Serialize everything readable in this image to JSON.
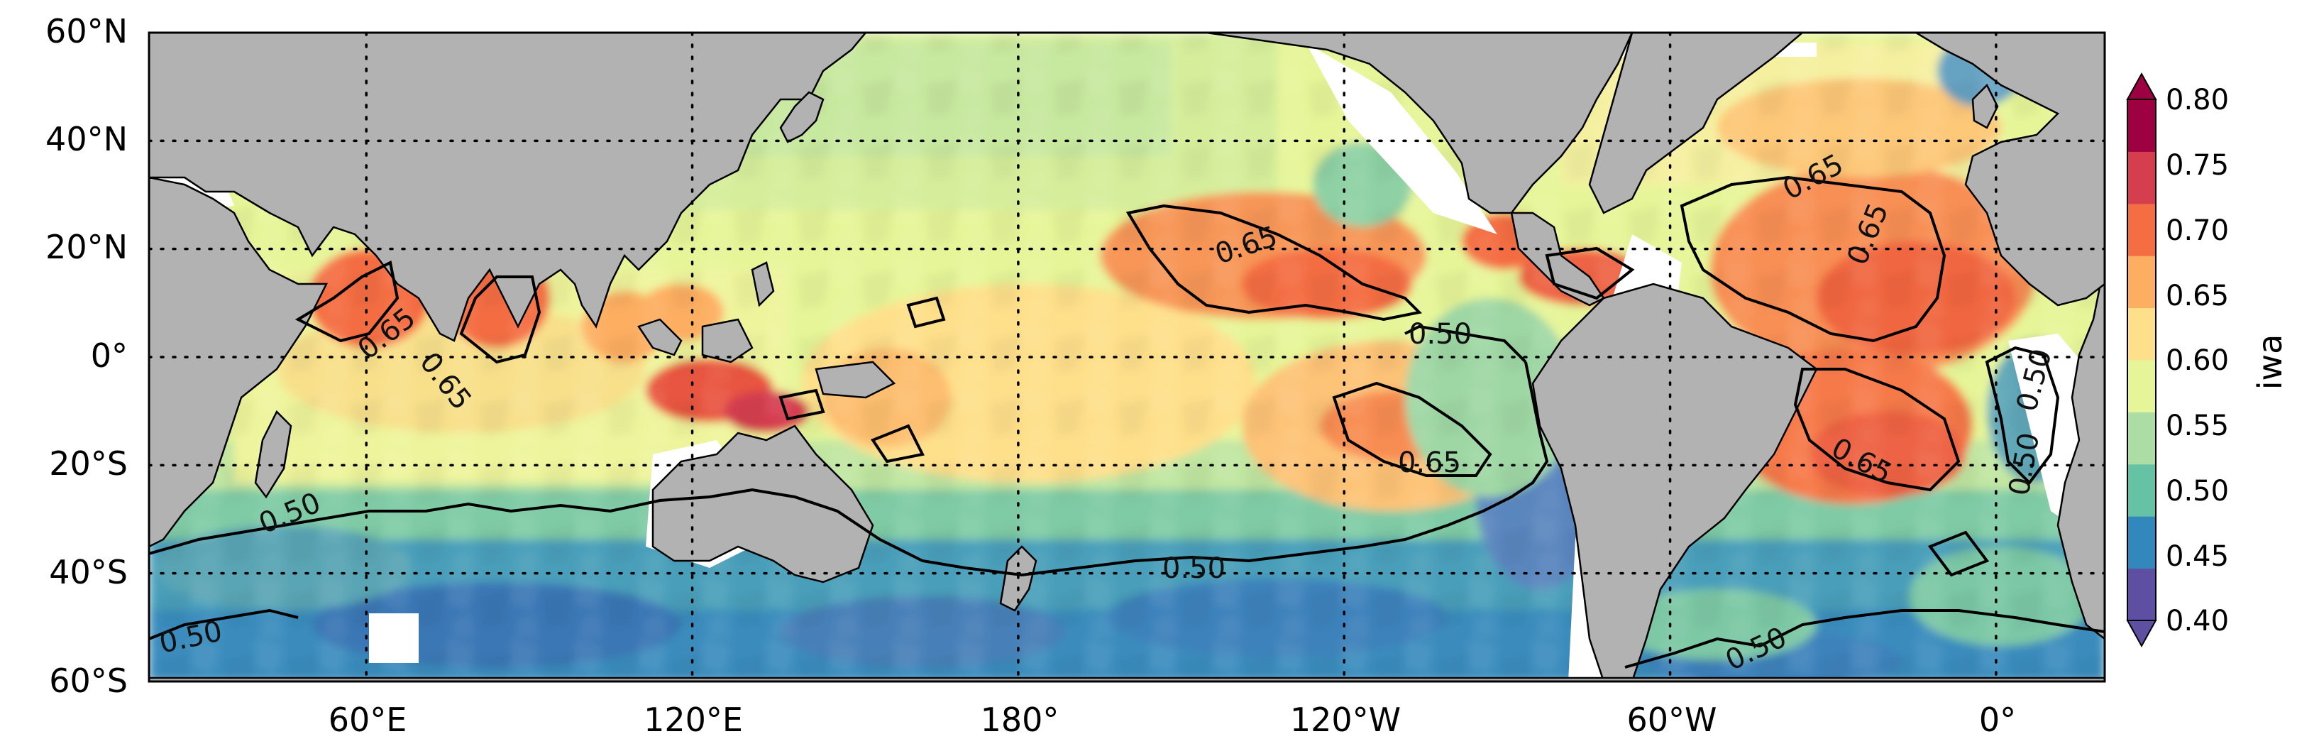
{
  "chart_data": {
    "type": "heatmap",
    "projection": "PlateCarree (Pacific-centered)",
    "lon_ticks": [
      "60°E",
      "120°E",
      "180°",
      "120°W",
      "60°W",
      "0°"
    ],
    "lat_ticks": [
      "60°N",
      "40°N",
      "20°N",
      "0°",
      "20°S",
      "40°S",
      "60°S"
    ],
    "lon_range": [
      20,
      380
    ],
    "lat_range": [
      -60,
      60
    ],
    "grid": "dotted",
    "colormap": "Spectral_r",
    "colorbar": {
      "label": "iwa",
      "ticks": [
        "0.80",
        "0.75",
        "0.70",
        "0.65",
        "0.60",
        "0.55",
        "0.50",
        "0.45",
        "0.40"
      ],
      "range": [
        0.4,
        0.8
      ],
      "extend": "both",
      "placement": "right",
      "colors": [
        "#5e4fa2",
        "#3288bd",
        "#66c2a5",
        "#abdda4",
        "#e6f598",
        "#fee08b",
        "#fdae61",
        "#f46d43",
        "#d53e4f",
        "#9e0142"
      ]
    },
    "contour_levels": [
      0.5,
      0.65
    ],
    "contour_labels": [
      {
        "text": "0.65",
        "lon": 70,
        "lat": 0
      },
      {
        "text": "0.65",
        "lon": 79,
        "lat": 0
      },
      {
        "text": "0.65",
        "lon": 218,
        "lat": 20
      },
      {
        "text": "0.50",
        "lon": 247,
        "lat": 3
      },
      {
        "text": "0.65",
        "lon": 246,
        "lat": -20
      },
      {
        "text": "0.50",
        "lon": 211,
        "lat": -39
      },
      {
        "text": "0.50",
        "lon": 45,
        "lat": -29
      },
      {
        "text": "0.50",
        "lon": 30,
        "lat": -52
      },
      {
        "text": "0.65",
        "lon": 327,
        "lat": 33
      },
      {
        "text": "0.65",
        "lon": 344,
        "lat": 19
      },
      {
        "text": "0.65",
        "lon": 331,
        "lat": -18
      },
      {
        "text": "0.50",
        "lon": 363,
        "lat": -6
      },
      {
        "text": "0.50",
        "lon": 360,
        "lat": -20
      },
      {
        "text": "0.50",
        "lon": 326,
        "lat": -53
      }
    ],
    "colors": {
      "land": "#b2b2b2",
      "coast_gap": "#ffffff",
      "contour": "#000000"
    }
  }
}
